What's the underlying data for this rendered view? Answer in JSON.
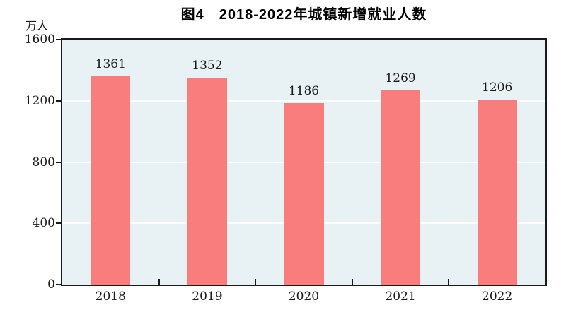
{
  "chart_data": {
    "type": "bar",
    "title": "图4　2018-2022年城镇新增就业人数",
    "unit_label": "万人",
    "categories": [
      "2018",
      "2019",
      "2020",
      "2021",
      "2022"
    ],
    "values": [
      1361,
      1352,
      1186,
      1269,
      1206
    ],
    "ylim": [
      0,
      1600
    ],
    "yticks": [
      0,
      400,
      800,
      1200,
      1600
    ],
    "grid": "horizontal white gridlines at 400, 800, 1200",
    "legend": "none",
    "value_labels": "above each bar",
    "colors": {
      "bar": "#FA7D7D",
      "plot_background": "#E8F1F4",
      "axis": "#1A1A1A",
      "gridline": "#FBFDFE",
      "text": "#1A1A1A"
    }
  }
}
